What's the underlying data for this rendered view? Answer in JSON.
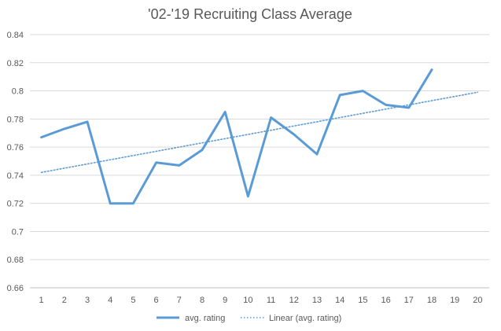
{
  "chart_data": {
    "type": "line",
    "title": "'02-'19 Recruiting Class Average",
    "xlabel": "",
    "ylabel": "",
    "x": [
      1,
      2,
      3,
      4,
      5,
      6,
      7,
      8,
      9,
      10,
      11,
      12,
      13,
      14,
      15,
      16,
      17,
      18,
      19,
      20
    ],
    "x_tick_labels": [
      "1",
      "2",
      "3",
      "4",
      "5",
      "6",
      "7",
      "8",
      "9",
      "10",
      "11",
      "12",
      "13",
      "14",
      "15",
      "16",
      "17",
      "18",
      "19",
      "20"
    ],
    "ylim": [
      0.66,
      0.84
    ],
    "y_ticks": [
      0.66,
      0.68,
      0.7,
      0.72,
      0.74,
      0.76,
      0.78,
      0.8,
      0.82,
      0.84
    ],
    "y_tick_labels": [
      "0.66",
      "0.68",
      "0.7",
      "0.72",
      "0.74",
      "0.76",
      "0.78",
      "0.8",
      "0.82",
      "0.84"
    ],
    "grid": true,
    "legend_position": "bottom",
    "series": [
      {
        "name": "avg. rating",
        "style": "solid",
        "color": "#5b9bd5",
        "x": [
          1,
          2,
          3,
          4,
          5,
          6,
          7,
          8,
          9,
          10,
          11,
          12,
          13,
          14,
          15,
          16,
          17,
          18
        ],
        "values": [
          0.767,
          0.773,
          0.778,
          0.72,
          0.72,
          0.749,
          0.747,
          0.758,
          0.785,
          0.725,
          0.781,
          0.769,
          0.755,
          0.797,
          0.8,
          0.79,
          0.788,
          0.815
        ]
      },
      {
        "name": "Linear (avg. rating)",
        "style": "dotted",
        "color": "#5b9bd5",
        "x": [
          1,
          20
        ],
        "values": [
          0.742,
          0.799
        ]
      }
    ]
  }
}
